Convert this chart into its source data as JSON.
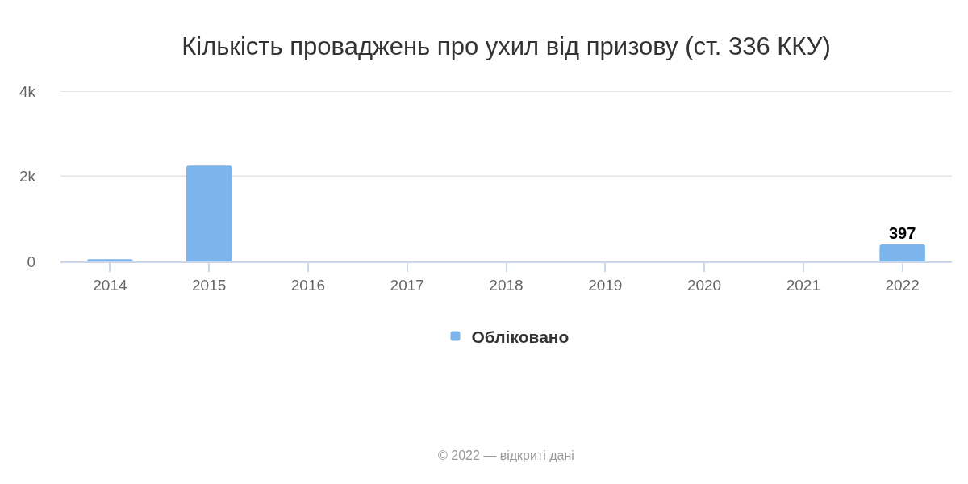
{
  "chart_data": {
    "type": "bar",
    "title": "Кількість проваджень про ухил від призову (ст. 336 ККУ)",
    "categories": [
      "2014",
      "2015",
      "2016",
      "2017",
      "2018",
      "2019",
      "2020",
      "2021",
      "2022"
    ],
    "series": [
      {
        "name": "Обліковано",
        "color": "#7cb5ec",
        "values": [
          50,
          2250,
          null,
          null,
          null,
          null,
          null,
          null,
          397
        ],
        "value_labels": [
          null,
          null,
          null,
          null,
          null,
          null,
          null,
          null,
          "397"
        ]
      }
    ],
    "ylim": [
      0,
      4000
    ],
    "yticks": [
      {
        "value": 0,
        "label": "0"
      },
      {
        "value": 2000,
        "label": "2k"
      },
      {
        "value": 4000,
        "label": "4k"
      }
    ],
    "grid": "y",
    "legend": "bottom",
    "annotations": [
      "© 2022 — відкриті дані"
    ]
  }
}
